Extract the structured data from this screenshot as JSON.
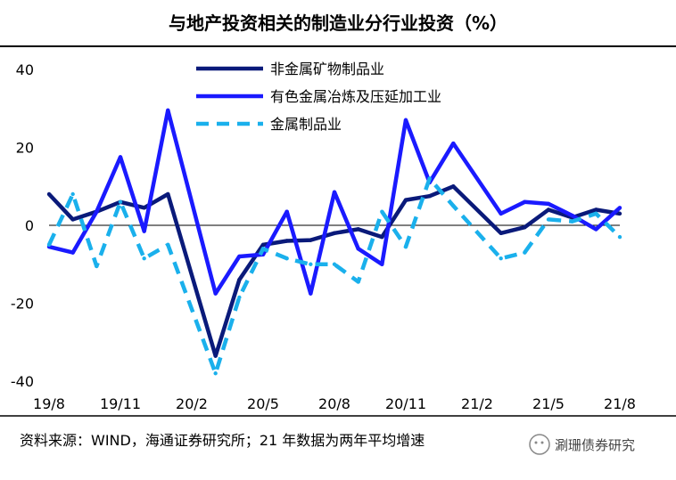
{
  "page": {
    "title": "与地产投资相关的制造业分行业投资（%）",
    "source": "资料来源：WIND，海通证券研究所；21 年数据为两年平均增速",
    "watermark": "涮珊债券研究"
  },
  "chart_data": {
    "type": "line",
    "title": "与地产投资相关的制造业分行业投资（%）",
    "xlabel": "",
    "ylabel": "",
    "ylim": [
      -40,
      40
    ],
    "yticks": [
      40,
      20,
      0,
      -20,
      -40
    ],
    "x": [
      "19/8",
      "19/9",
      "19/10",
      "19/11",
      "19/12",
      "20/1",
      "20/2",
      "20/3",
      "20/4",
      "20/5",
      "20/6",
      "20/7",
      "20/8",
      "20/9",
      "20/10",
      "20/11",
      "20/12",
      "21/1",
      "21/2",
      "21/3",
      "21/4",
      "21/5",
      "21/6",
      "21/7",
      "21/8"
    ],
    "xtick_labels": [
      "19/8",
      "19/11",
      "20/2",
      "20/5",
      "20/8",
      "20/11",
      "21/2",
      "21/5",
      "21/8"
    ],
    "legend_position": "top-center",
    "grid": false,
    "series": [
      {
        "name": "非金属矿物制品业",
        "color": "#0a1a7a",
        "dash": "solid",
        "values": [
          8,
          1.5,
          3.5,
          6,
          4.5,
          8,
          null,
          -33.5,
          -14,
          -5,
          -4,
          -3.8,
          -2,
          -1,
          -3,
          6.5,
          7.5,
          10,
          null,
          -2,
          -0.5,
          4,
          2,
          4,
          3
        ]
      },
      {
        "name": "有色金属冶炼及压延加工业",
        "color": "#1a1aff",
        "dash": "solid",
        "values": [
          -5.5,
          -7,
          3.5,
          17.5,
          -1.5,
          29.5,
          null,
          -17.5,
          -8,
          -7.5,
          3.5,
          -17.5,
          8.5,
          -6,
          -10,
          27,
          11,
          21,
          null,
          3,
          6,
          5.5,
          2.5,
          -1,
          4.5
        ]
      },
      {
        "name": "金属制品业",
        "color": "#1ab0ec",
        "dash": "dashed",
        "values": [
          -5,
          8,
          -10.5,
          6,
          -8.5,
          -5,
          null,
          -38,
          -18.5,
          -6,
          -8.5,
          -10,
          -10,
          -14.5,
          3.5,
          -5.5,
          12,
          5,
          null,
          -8.5,
          -7,
          1.5,
          1,
          3,
          -3
        ]
      }
    ],
    "connect_gaps": true
  }
}
